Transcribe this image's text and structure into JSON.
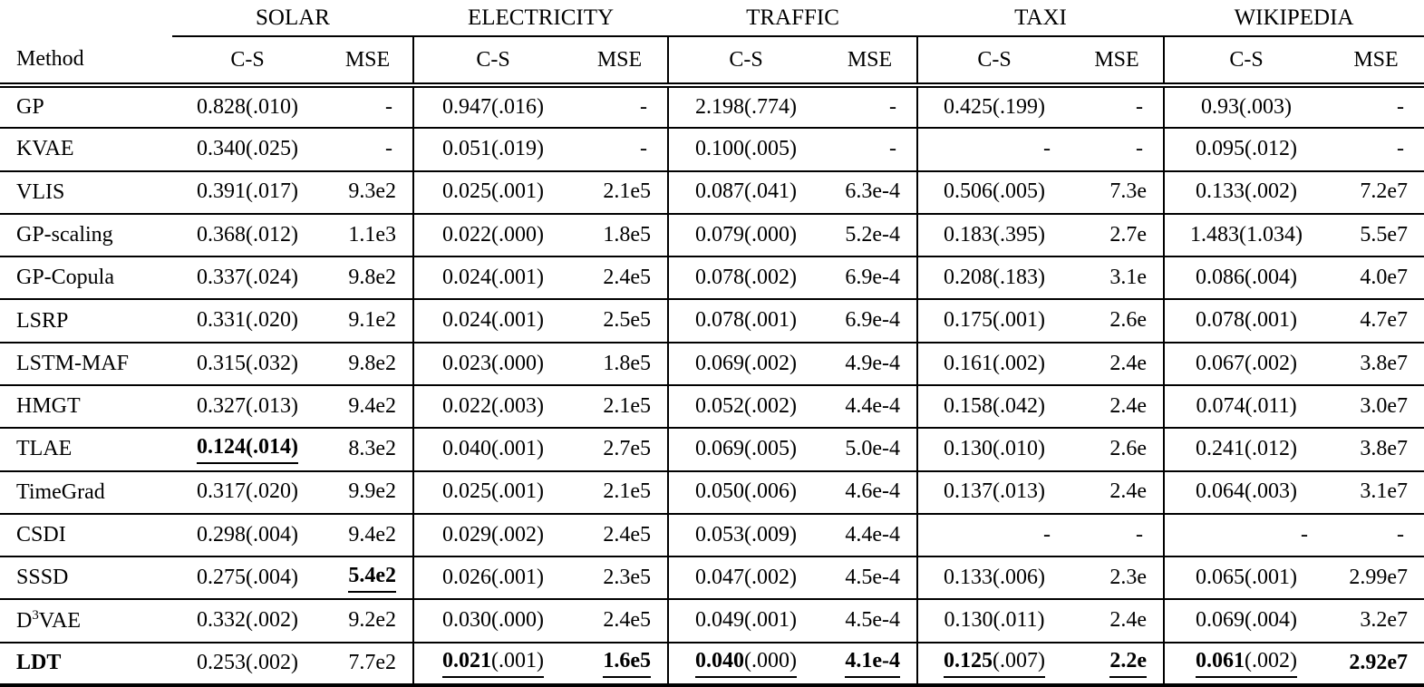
{
  "table": {
    "method_header": "Method",
    "col_cs": "C-S",
    "col_mse": "MSE",
    "colors": {
      "text": "#000000",
      "background": "#ffffff",
      "rule": "#000000"
    },
    "groups": [
      {
        "name": "SOLAR"
      },
      {
        "name": "ELECTRICITY"
      },
      {
        "name": "TRAFFIC"
      },
      {
        "name": "TAXI"
      },
      {
        "name": "WIKIPEDIA"
      }
    ],
    "rows": [
      {
        "method": "GP",
        "cells": [
          {
            "v": "0.828",
            "s": "(.010)"
          },
          {
            "v": "-"
          },
          {
            "v": "0.947",
            "s": "(.016)"
          },
          {
            "v": "-"
          },
          {
            "v": "2.198",
            "s": "(.774)"
          },
          {
            "v": "-"
          },
          {
            "v": "0.425",
            "s": "(.199)"
          },
          {
            "v": "-"
          },
          {
            "v": "0.93",
            "s": "(.003)"
          },
          {
            "v": "-"
          }
        ]
      },
      {
        "method": "KVAE",
        "cells": [
          {
            "v": "0.340",
            "s": "(.025)"
          },
          {
            "v": "-"
          },
          {
            "v": "0.051",
            "s": "(.019)"
          },
          {
            "v": "-"
          },
          {
            "v": "0.100",
            "s": "(.005)"
          },
          {
            "v": "-"
          },
          {
            "v": "-"
          },
          {
            "v": "-"
          },
          {
            "v": "0.095",
            "s": "(.012)"
          },
          {
            "v": "-"
          }
        ]
      },
      {
        "method": "VLIS",
        "cells": [
          {
            "v": "0.391",
            "s": "(.017)"
          },
          {
            "v": "9.3e2"
          },
          {
            "v": "0.025",
            "s": "(.001)"
          },
          {
            "v": "2.1e5"
          },
          {
            "v": "0.087",
            "s": "(.041)"
          },
          {
            "v": "6.3e-4"
          },
          {
            "v": "0.506",
            "s": "(.005)"
          },
          {
            "v": "7.3e"
          },
          {
            "v": "0.133",
            "s": "(.002)"
          },
          {
            "v": "7.2e7"
          }
        ]
      },
      {
        "method": "GP-scaling",
        "cells": [
          {
            "v": "0.368",
            "s": "(.012)"
          },
          {
            "v": "1.1e3"
          },
          {
            "v": "0.022",
            "s": "(.000)"
          },
          {
            "v": "1.8e5"
          },
          {
            "v": "0.079",
            "s": "(.000)"
          },
          {
            "v": "5.2e-4"
          },
          {
            "v": "0.183",
            "s": "(.395)"
          },
          {
            "v": "2.7e"
          },
          {
            "v": "1.483",
            "s": "(1.034)"
          },
          {
            "v": "5.5e7"
          }
        ]
      },
      {
        "method": "GP-Copula",
        "cells": [
          {
            "v": "0.337",
            "s": "(.024)"
          },
          {
            "v": "9.8e2"
          },
          {
            "v": "0.024",
            "s": "(.001)"
          },
          {
            "v": "2.4e5"
          },
          {
            "v": "0.078",
            "s": "(.002)"
          },
          {
            "v": "6.9e-4"
          },
          {
            "v": "0.208",
            "s": "(.183)"
          },
          {
            "v": "3.1e"
          },
          {
            "v": "0.086",
            "s": "(.004)"
          },
          {
            "v": "4.0e7"
          }
        ]
      },
      {
        "method": "LSRP",
        "cells": [
          {
            "v": "0.331",
            "s": "(.020)"
          },
          {
            "v": "9.1e2"
          },
          {
            "v": "0.024",
            "s": "(.001)"
          },
          {
            "v": "2.5e5"
          },
          {
            "v": "0.078",
            "s": "(.001)"
          },
          {
            "v": "6.9e-4"
          },
          {
            "v": "0.175",
            "s": "(.001)"
          },
          {
            "v": "2.6e"
          },
          {
            "v": "0.078",
            "s": "(.001)"
          },
          {
            "v": "4.7e7"
          }
        ]
      },
      {
        "method": "LSTM-MAF",
        "cells": [
          {
            "v": "0.315",
            "s": "(.032)"
          },
          {
            "v": "9.8e2"
          },
          {
            "v": "0.023",
            "s": "(.000)"
          },
          {
            "v": "1.8e5"
          },
          {
            "v": "0.069",
            "s": "(.002)"
          },
          {
            "v": "4.9e-4"
          },
          {
            "v": "0.161",
            "s": "(.002)"
          },
          {
            "v": "2.4e"
          },
          {
            "v": "0.067",
            "s": "(.002)"
          },
          {
            "v": "3.8e7"
          }
        ]
      },
      {
        "method": "HMGT",
        "cells": [
          {
            "v": "0.327",
            "s": "(.013)"
          },
          {
            "v": "9.4e2"
          },
          {
            "v": "0.022",
            "s": "(.003)"
          },
          {
            "v": "2.1e5"
          },
          {
            "v": "0.052",
            "s": "(.002)"
          },
          {
            "v": "4.4e-4"
          },
          {
            "v": "0.158",
            "s": "(.042)"
          },
          {
            "v": "2.4e"
          },
          {
            "v": "0.074",
            "s": "(.011)"
          },
          {
            "v": "3.0e7"
          }
        ]
      },
      {
        "method": "TLAE",
        "cells": [
          {
            "v": "0.124",
            "s": "(.014)",
            "b": "all",
            "u": true
          },
          {
            "v": "8.3e2"
          },
          {
            "v": "0.040",
            "s": "(.001)"
          },
          {
            "v": "2.7e5"
          },
          {
            "v": "0.069",
            "s": "(.005)"
          },
          {
            "v": "5.0e-4"
          },
          {
            "v": "0.130",
            "s": "(.010)"
          },
          {
            "v": "2.6e"
          },
          {
            "v": "0.241",
            "s": "(.012)"
          },
          {
            "v": "3.8e7"
          }
        ]
      },
      {
        "method": "TimeGrad",
        "cells": [
          {
            "v": "0.317",
            "s": "(.020)"
          },
          {
            "v": "9.9e2"
          },
          {
            "v": "0.025",
            "s": "(.001)"
          },
          {
            "v": "2.1e5"
          },
          {
            "v": "0.050",
            "s": "(.006)"
          },
          {
            "v": "4.6e-4"
          },
          {
            "v": "0.137",
            "s": "(.013)"
          },
          {
            "v": "2.4e"
          },
          {
            "v": "0.064",
            "s": "(.003)"
          },
          {
            "v": "3.1e7"
          }
        ]
      },
      {
        "method": "CSDI",
        "cells": [
          {
            "v": "0.298",
            "s": "(.004)"
          },
          {
            "v": "9.4e2"
          },
          {
            "v": "0.029",
            "s": "(.002)"
          },
          {
            "v": "2.4e5"
          },
          {
            "v": "0.053",
            "s": "(.009)"
          },
          {
            "v": "4.4e-4"
          },
          {
            "v": "-"
          },
          {
            "v": "-"
          },
          {
            "v": "-"
          },
          {
            "v": "-"
          }
        ]
      },
      {
        "method": "SSSD",
        "cells": [
          {
            "v": "0.275",
            "s": "(.004)"
          },
          {
            "v": "5.4e2",
            "b": "all",
            "u": true
          },
          {
            "v": "0.026",
            "s": "(.001)"
          },
          {
            "v": "2.3e5"
          },
          {
            "v": "0.047",
            "s": "(.002)"
          },
          {
            "v": "4.5e-4"
          },
          {
            "v": "0.133",
            "s": "(.006)"
          },
          {
            "v": "2.3e"
          },
          {
            "v": "0.065",
            "s": "(.001)"
          },
          {
            "v": "2.99e7"
          }
        ]
      },
      {
        "method": "D",
        "method_sup": "3",
        "method_rest": "VAE",
        "cells": [
          {
            "v": "0.332",
            "s": "(.002)"
          },
          {
            "v": "9.2e2"
          },
          {
            "v": "0.030",
            "s": "(.000)"
          },
          {
            "v": "2.4e5"
          },
          {
            "v": "0.049",
            "s": "(.001)"
          },
          {
            "v": "4.5e-4"
          },
          {
            "v": "0.130",
            "s": "(.011)"
          },
          {
            "v": "2.4e"
          },
          {
            "v": "0.069",
            "s": "(.004)"
          },
          {
            "v": "3.2e7"
          }
        ]
      },
      {
        "method": "LDT",
        "bold": true,
        "cells": [
          {
            "v": "0.253",
            "s": "(.002)"
          },
          {
            "v": "7.7e2"
          },
          {
            "v": "0.021",
            "s": "(.001)",
            "b": "main",
            "u": true
          },
          {
            "v": "1.6e5",
            "b": "all",
            "u": true
          },
          {
            "v": "0.040",
            "s": "(.000)",
            "b": "main",
            "u": true
          },
          {
            "v": "4.1e-4",
            "b": "all",
            "u": true
          },
          {
            "v": "0.125",
            "s": "(.007)",
            "b": "main",
            "u": true
          },
          {
            "v": "2.2e",
            "b": "all",
            "u": true
          },
          {
            "v": "0.061",
            "s": "(.002)",
            "b": "main",
            "u": true
          },
          {
            "v": "2.92e7",
            "b": "all"
          }
        ]
      }
    ]
  }
}
